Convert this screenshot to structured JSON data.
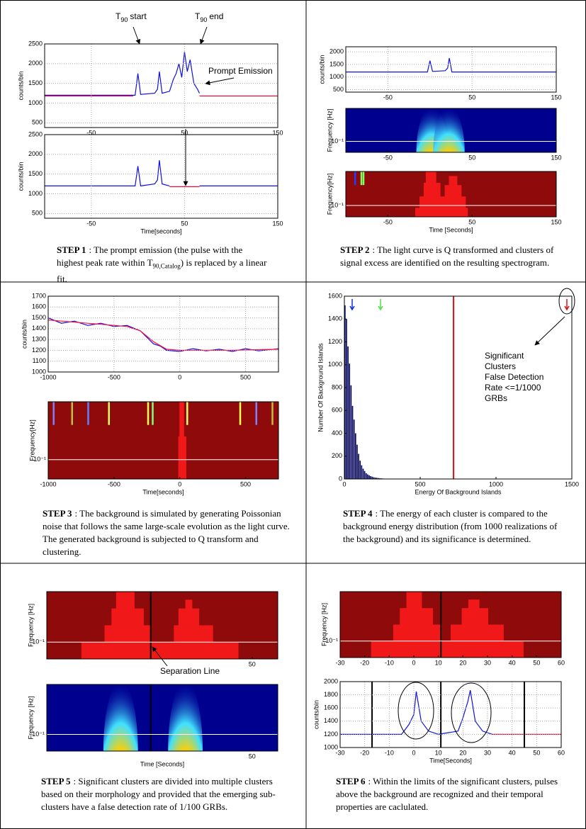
{
  "panels": [
    {
      "step": "STEP 1",
      "caption": [
        ": The prompt emission (the pulse with the highest peak rate within T",
        ") is replaced by a linear fit."
      ],
      "sub": "90,Catalog",
      "t90_start": {
        "base": "T",
        "sub": "90",
        "text": "start"
      },
      "t90_end": {
        "base": "T",
        "sub": "90",
        "text": "end"
      },
      "annotation": "Prompt Emission",
      "plots": [
        {
          "kind": "line",
          "ylabel": "counts/bin",
          "xlim": [
            -100,
            150
          ],
          "ylim": [
            380,
            2500
          ],
          "xticks": [
            -50,
            50,
            150
          ],
          "yticks": [
            500,
            1000,
            1500,
            2000,
            2500
          ],
          "grid": true,
          "series": [
            {
              "color": "#1010e0",
              "x": [
                -100,
                -3,
                0,
                3,
                18,
                21,
                23,
                26,
                34,
                38,
                41,
                44,
                47,
                50,
                53,
                56,
                60,
                64,
                66
              ],
              "y": [
                1200,
                1200,
                1750,
                1220,
                1250,
                1350,
                1800,
                1250,
                1300,
                1600,
                1750,
                2000,
                1650,
                2300,
                1800,
                2100,
                1500,
                1350,
                1250
              ]
            },
            {
              "color": "#e0103a",
              "x": [
                -100,
                -5,
                0,
                66,
                150
              ],
              "y": [
                1180,
                1180,
                null,
                1180,
                1180
              ]
            }
          ]
        },
        {
          "kind": "line",
          "ylabel": "counts/bin",
          "xlabel": "Time[seconds]",
          "xlim": [
            -100,
            150
          ],
          "ylim": [
            380,
            2500
          ],
          "xticks": [
            -50,
            50,
            150
          ],
          "yticks": [
            500,
            1000,
            1500,
            2000,
            2500
          ],
          "grid": true,
          "series": [
            {
              "color": "#1010e0",
              "x": [
                -100,
                -3,
                0,
                3,
                18,
                21,
                23,
                26,
                34,
                50,
                66,
                150
              ],
              "y": [
                1200,
                1200,
                1700,
                1200,
                1250,
                1350,
                1850,
                1250,
                1200,
                null,
                1200,
                1200
              ]
            },
            {
              "color": "#e0103a",
              "x": [
                34,
                66
              ],
              "y": [
                1180,
                1180
              ]
            }
          ]
        }
      ]
    },
    {
      "step": "STEP 2",
      "caption": [
        ": The light curve is Q transformed and clusters of signal excess are identified on the resulting spectrogram."
      ],
      "plots": [
        {
          "kind": "line",
          "ylabel": "counts/bin",
          "xlim": [
            -100,
            150
          ],
          "ylim": [
            400,
            2200
          ],
          "xticks": [
            -50,
            50,
            150
          ],
          "yticks": [
            500,
            1000,
            1500,
            2000
          ],
          "grid": true,
          "series": [
            {
              "color": "#1010e0",
              "x": [
                -100,
                -3,
                0,
                3,
                18,
                21,
                23,
                26,
                150
              ],
              "y": [
                1200,
                1200,
                1650,
                1220,
                1250,
                1350,
                1750,
                1200,
                1200
              ]
            }
          ]
        },
        {
          "kind": "spectrogram",
          "ylabel": "Frequency [Hz]",
          "log": true,
          "xlim": [
            -100,
            150
          ],
          "ylim": [
            0.05,
            0.8
          ],
          "xticks": [
            -50,
            50,
            150
          ],
          "yticks": [
            {
              "value": 0.1,
              "label": "10⁻¹"
            }
          ]
        },
        {
          "kind": "clusters",
          "ylabel": "Frequency[Hz]",
          "xlabel": "Time [Seconds]",
          "log": true,
          "xlim": [
            -100,
            150
          ],
          "ylim": [
            0.05,
            0.8
          ],
          "xticks": [
            -50,
            50,
            150
          ],
          "yticks": [
            {
              "value": 0.1,
              "label": "10⁻¹"
            }
          ]
        }
      ]
    },
    {
      "step": "STEP 3",
      "caption": [
        ": The background is simulated by generating Poissonian noise that follows the same large-scale evolution as the light curve. The generated background is subjected to Q transform and clustering."
      ],
      "plots": [
        {
          "kind": "line",
          "ylabel": "counts/bin",
          "xlim": [
            -1000,
            750
          ],
          "ylim": [
            1000,
            1700
          ],
          "xticks": [
            -1000,
            -500,
            0,
            500
          ],
          "yticks": [
            1000,
            1100,
            1200,
            1300,
            1400,
            1500,
            1600,
            1700
          ],
          "grid": true,
          "series": [
            {
              "color": "#1010e0",
              "x": [
                -1000,
                -900,
                -800,
                -700,
                -600,
                -500,
                -400,
                -300,
                -250,
                -200,
                -150,
                -100,
                0,
                100,
                200,
                300,
                400,
                500,
                600,
                750
              ],
              "y": [
                1500,
                1450,
                1470,
                1430,
                1450,
                1420,
                1430,
                1380,
                1320,
                1260,
                1240,
                1200,
                1190,
                1215,
                1195,
                1210,
                1190,
                1215,
                1195,
                1215
              ]
            },
            {
              "color": "#ff1040",
              "x": [
                -1000,
                -800,
                -600,
                -400,
                -300,
                -200,
                -100,
                0,
                200,
                400,
                750
              ],
              "y": [
                1480,
                1460,
                1440,
                1420,
                1380,
                1280,
                1210,
                1200,
                1200,
                1200,
                1210
              ]
            }
          ]
        },
        {
          "kind": "clusters",
          "ylabel": "Frequency[Hz]",
          "xlabel": "Time[seconds]",
          "log": true,
          "xlim": [
            -1000,
            750
          ],
          "ylim": [
            0.05,
            0.8
          ],
          "xticks": [
            -1000,
            -500,
            0,
            500
          ],
          "yticks": [
            {
              "value": 0.1,
              "label": "10⁻¹"
            }
          ]
        }
      ]
    },
    {
      "step": "STEP 4",
      "caption": [
        ": The energy of each cluster is compared to the background energy distribution (from 1000 realizations of the background) and its significance is determined."
      ],
      "annotation": [
        "Significant",
        "Clusters",
        "False Detection",
        "Rate <=1/1000",
        "GRBs"
      ],
      "plots": [
        {
          "kind": "histogram",
          "xlabel": "Energy Of Background Islands",
          "ylabel": "Number Of Background Islands",
          "xlim": [
            0,
            1500
          ],
          "ylim": [
            0,
            1600
          ],
          "xticks": [
            0,
            500,
            1000,
            1500
          ],
          "yticks": [
            0,
            200,
            400,
            600,
            800,
            1000,
            1200,
            1400,
            1600
          ],
          "color": "#00005a",
          "bins": [
            0,
            10,
            20,
            30,
            40,
            50,
            60,
            70,
            80,
            90,
            100,
            110,
            120,
            130,
            140,
            150,
            160,
            170,
            180,
            190,
            200,
            210,
            220,
            230,
            240,
            250,
            260,
            270,
            280,
            290,
            300
          ],
          "values": [
            1520,
            1400,
            1160,
            1010,
            820,
            640,
            520,
            400,
            300,
            220,
            160,
            120,
            90,
            70,
            50,
            40,
            32,
            25,
            20,
            15,
            12,
            10,
            8,
            6,
            5,
            4,
            3,
            2,
            2,
            1
          ],
          "threshold": 720,
          "threshold_color": "#e01010"
        }
      ]
    },
    {
      "step": "STEP 5",
      "caption": [
        ": Significant clusters are divided into multiple clusters based on their morphology and provided that the emerging sub-clusters have a false detection rate of 1/100 GRBs."
      ],
      "annotation": "Separation Line",
      "plots": [
        {
          "kind": "clusters",
          "ylabel": "Frequency [Hz]",
          "log": true,
          "xlim": [
            -30,
            60
          ],
          "ylim": [
            0.05,
            0.8
          ],
          "xticks": [
            50
          ],
          "yticks": [
            {
              "value": 0.1,
              "label": "10⁻¹"
            }
          ]
        },
        {
          "kind": "spectrogram",
          "ylabel": "Frequency [Hz]",
          "xlabel": "Time [Seconds]",
          "log": true,
          "xlim": [
            -30,
            60
          ],
          "ylim": [
            0.05,
            0.8
          ],
          "xticks": [
            50
          ],
          "yticks": [
            {
              "value": 0.1,
              "label": "10⁻¹"
            }
          ]
        }
      ]
    },
    {
      "step": "STEP 6",
      "caption": [
        ": Within the limits of the significant clusters, pulses above the background are recognized and their temporal properties are caclulated."
      ],
      "plots": [
        {
          "kind": "clusters",
          "ylabel": "Frequency [Hz]",
          "log": true,
          "xlim": [
            -30,
            60
          ],
          "ylim": [
            0.05,
            0.8
          ],
          "xticks": [
            -30,
            -20,
            -10,
            0,
            10,
            20,
            30,
            40,
            50,
            60
          ],
          "yticks": [
            {
              "value": 0.1,
              "label": "10⁻¹"
            }
          ]
        },
        {
          "kind": "line",
          "ylabel": "counts/bin",
          "xlabel": "Time[Seconds]",
          "xlim": [
            -30,
            60
          ],
          "ylim": [
            1000,
            2000
          ],
          "xticks": [
            -30,
            -20,
            -10,
            0,
            10,
            20,
            30,
            40,
            50,
            60
          ],
          "yticks": [
            1000,
            1200,
            1400,
            1600,
            1800,
            2000
          ],
          "grid": true,
          "separators": [
            -17,
            11,
            45
          ],
          "series": [
            {
              "color": "#1010e0",
              "x": [
                -30,
                -5,
                -2,
                0,
                1,
                3,
                6,
                10,
                18,
                20,
                22,
                23,
                25,
                28,
                32
              ],
              "y": [
                1200,
                1200,
                1350,
                1500,
                1850,
                1400,
                1250,
                1200,
                1250,
                1450,
                1700,
                1870,
                1400,
                1250,
                1200
              ]
            },
            {
              "color": "#e0103a",
              "x": [
                32,
                60
              ],
              "y": [
                1200,
                1200
              ]
            }
          ]
        }
      ]
    }
  ]
}
